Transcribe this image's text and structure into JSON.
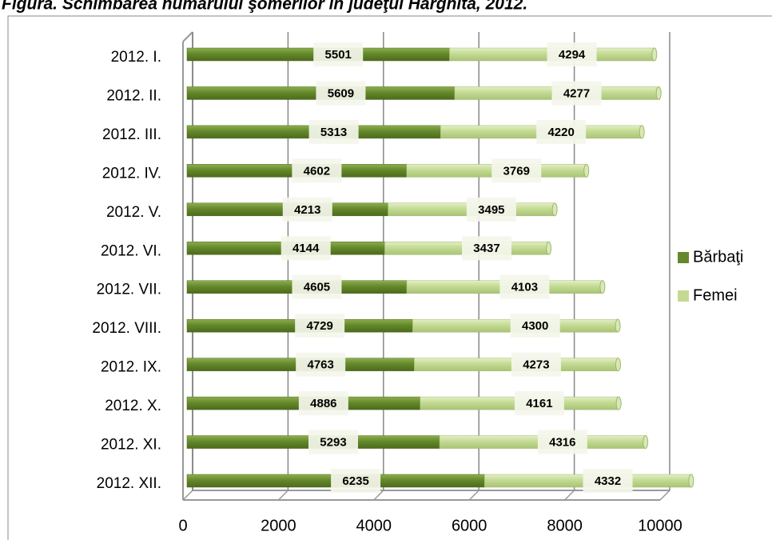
{
  "chart_data": {
    "type": "stacked_bar_horizontal",
    "title": "Figura. Schimbarea numărului şomerilor în judeţul Harghita, 2012.",
    "categories": [
      "2012. I.",
      "2012. II.",
      "2012. III.",
      "2012. IV.",
      "2012. V.",
      "2012. VI.",
      "2012. VII.",
      "2012. VIII.",
      "2012. IX.",
      "2012. X.",
      "2012. XI.",
      "2012. XII."
    ],
    "series": [
      {
        "name": "Bărbaţi",
        "color": "#64882b",
        "values": [
          5501,
          5609,
          5313,
          4602,
          4213,
          4144,
          4605,
          4729,
          4763,
          4886,
          5293,
          6235
        ]
      },
      {
        "name": "Femei",
        "color": "#c4da93",
        "values": [
          4294,
          4277,
          4220,
          3769,
          3495,
          3437,
          4103,
          4300,
          4273,
          4161,
          4316,
          4332
        ]
      }
    ],
    "xlim": [
      0,
      10000
    ],
    "xticks": [
      0,
      2000,
      4000,
      6000,
      8000,
      10000
    ],
    "grid": true,
    "legend": "right"
  }
}
